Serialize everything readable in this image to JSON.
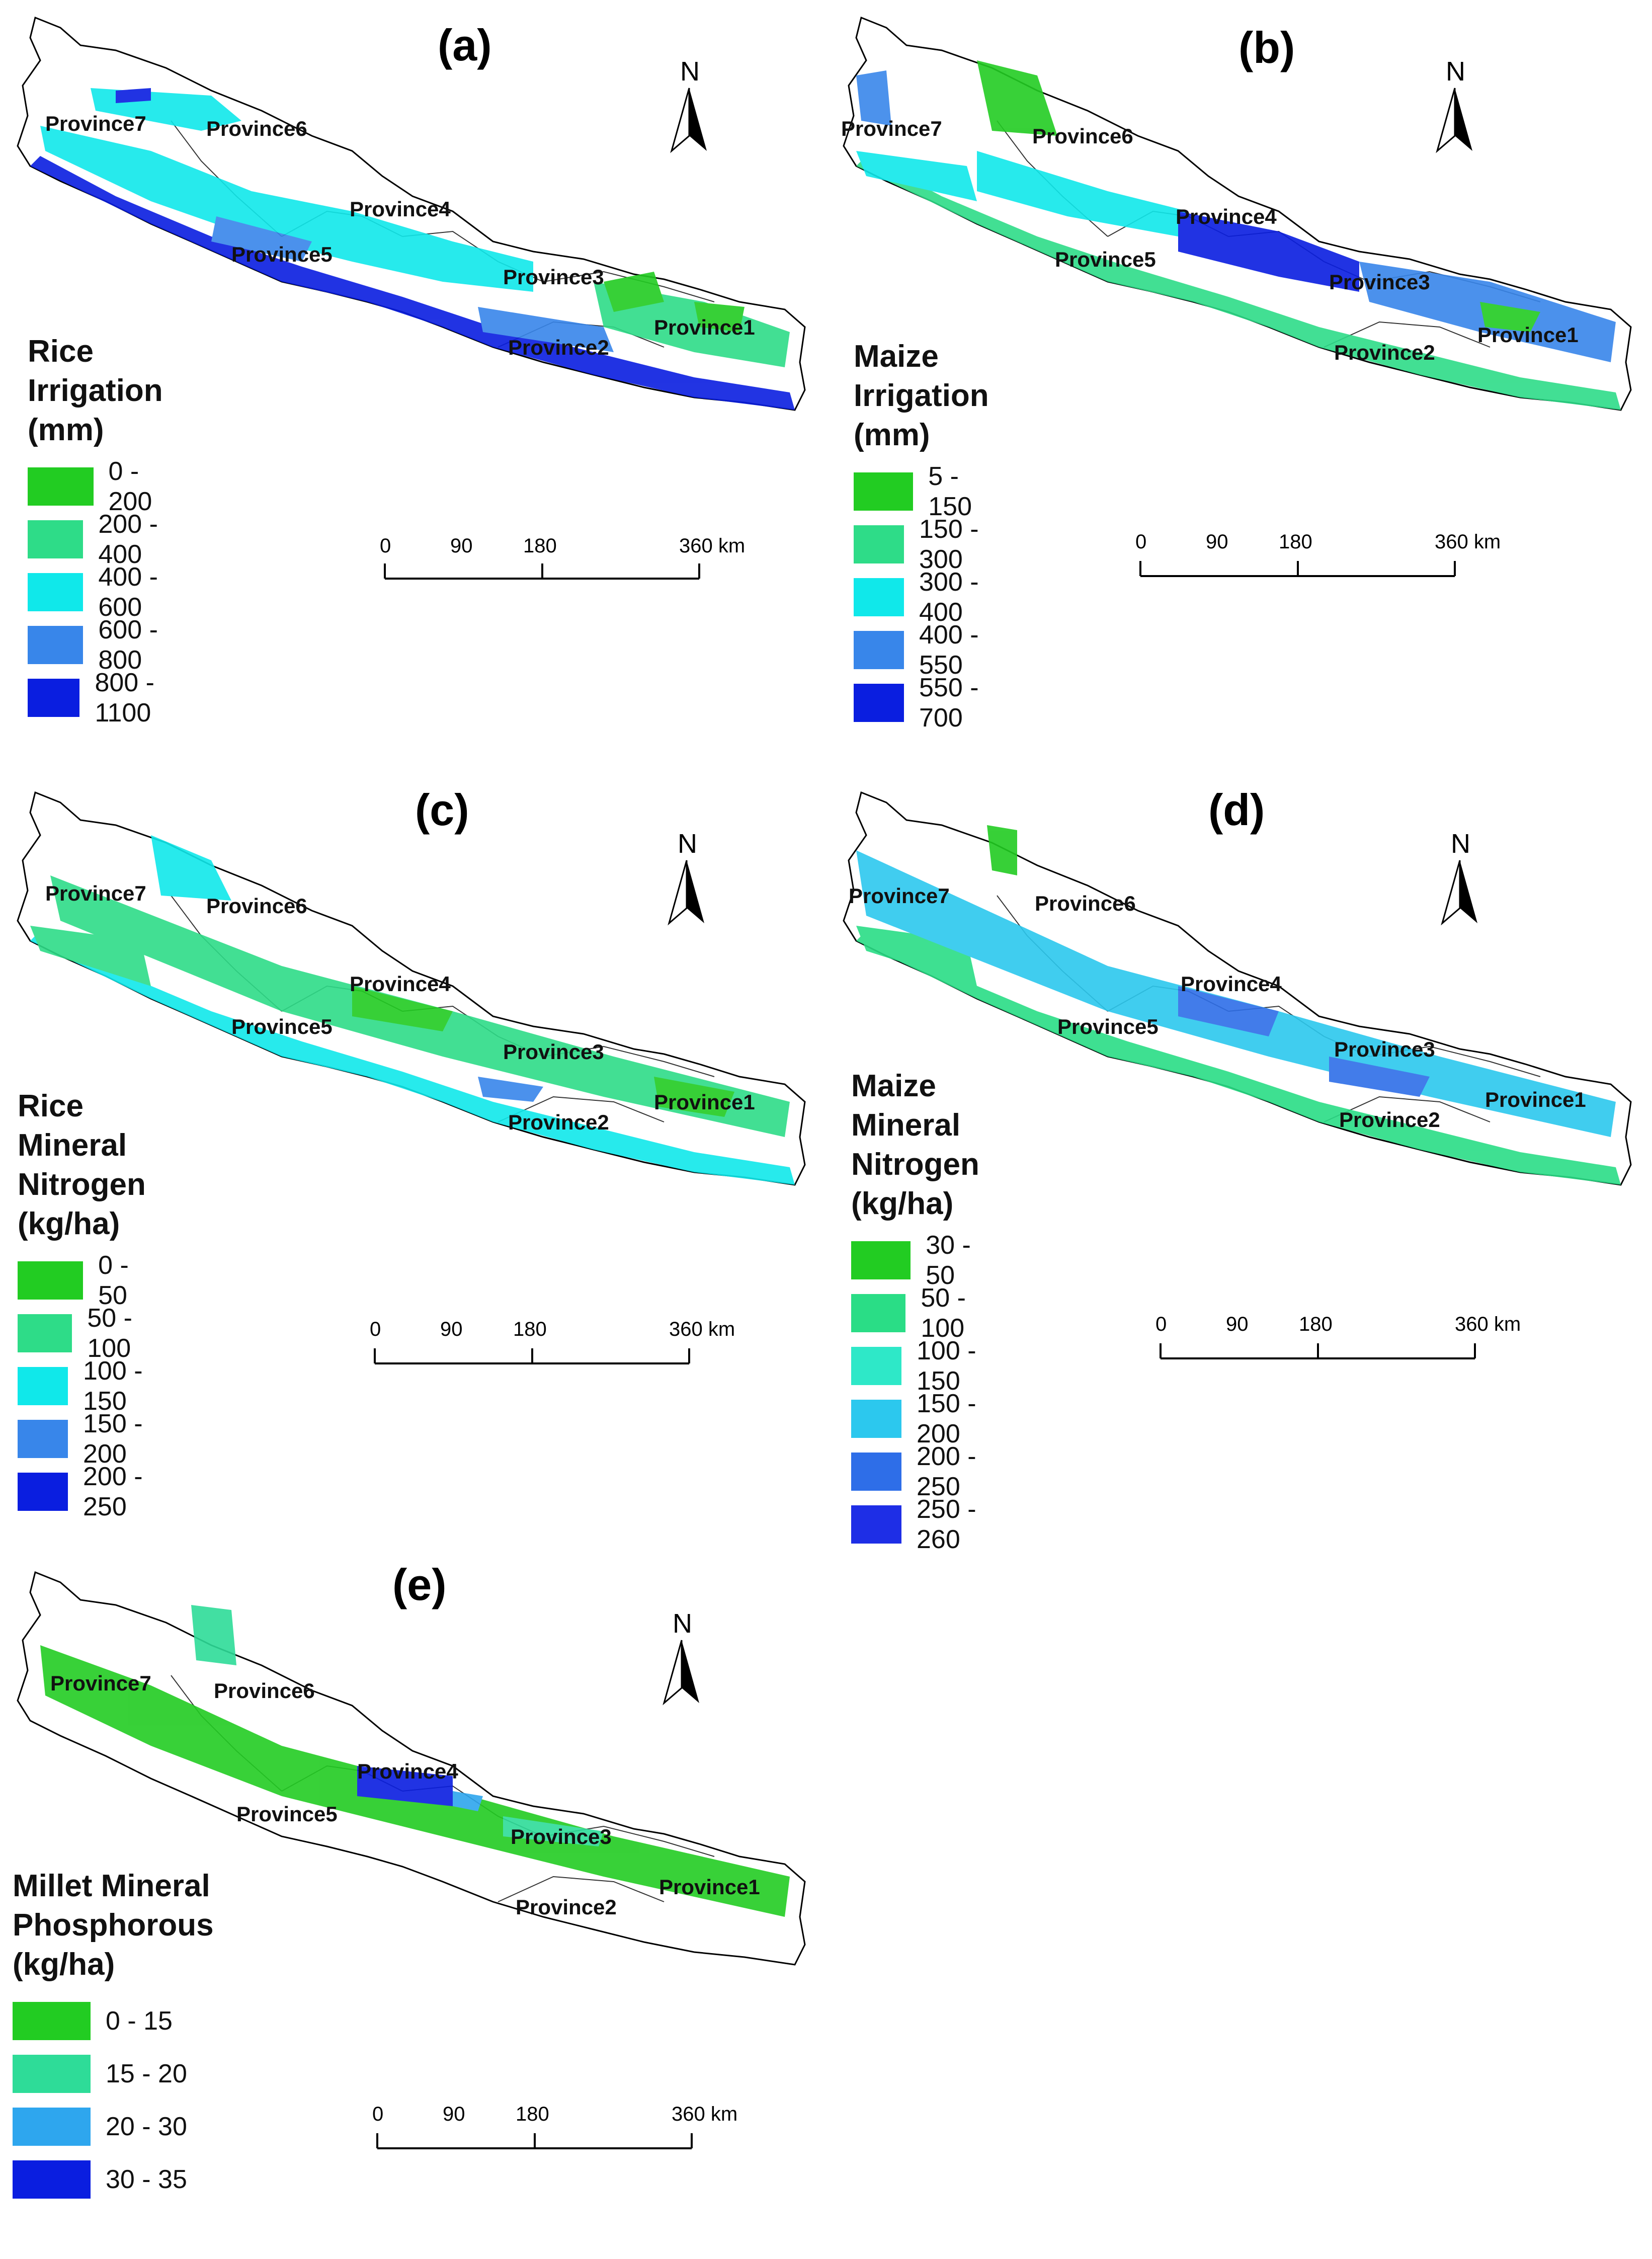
{
  "figure": {
    "north_label": "N",
    "scale_ticks": [
      "0",
      "90",
      "180",
      "360 km"
    ],
    "provinces": [
      "Province1",
      "Province2",
      "Province3",
      "Province4",
      "Province5",
      "Province6",
      "Province7"
    ],
    "colors": {
      "c1": "#22cc22",
      "c2": "#2edc88",
      "c3": "#10e8ea",
      "c4": "#3886ea",
      "c5": "#0a1ee0",
      "m1": "#2add86",
      "m2": "#2ee8c8",
      "m3": "#2cc8ee",
      "m4": "#2e6ee8",
      "m5": "#1e2ee6",
      "outline": "#000000"
    }
  },
  "panels": [
    {
      "label": "(a)",
      "legend_title": "Rice Irrigation (mm)",
      "classes": [
        {
          "label": "0 - 200",
          "color": "#22cc22"
        },
        {
          "label": "200 - 400",
          "color": "#2edc88"
        },
        {
          "label": "400 - 600",
          "color": "#10e8ea"
        },
        {
          "label": "600 - 800",
          "color": "#3886ea"
        },
        {
          "label": "800 - 1100",
          "color": "#0a1ee0"
        }
      ]
    },
    {
      "label": "(b)",
      "legend_title": "Maize Irrigation (mm)",
      "classes": [
        {
          "label": "5 - 150",
          "color": "#22cc22"
        },
        {
          "label": "150 - 300",
          "color": "#2edc88"
        },
        {
          "label": "300 - 400",
          "color": "#10e8ea"
        },
        {
          "label": "400 - 550",
          "color": "#3886ea"
        },
        {
          "label": "550 - 700",
          "color": "#0a1ee0"
        }
      ]
    },
    {
      "label": "(c)",
      "legend_title": "Rice Mineral\nNitrogen (kg/ha)",
      "classes": [
        {
          "label": "0 - 50",
          "color": "#22cc22"
        },
        {
          "label": "50 - 100",
          "color": "#2edc88"
        },
        {
          "label": "100 - 150",
          "color": "#10e8ea"
        },
        {
          "label": "150 - 200",
          "color": "#3886ea"
        },
        {
          "label": "200 - 250",
          "color": "#0a1ee0"
        }
      ]
    },
    {
      "label": "(d)",
      "legend_title": "Maize Mineral\nNitrogen (kg/ha)",
      "classes": [
        {
          "label": "30 - 50",
          "color": "#22cc22"
        },
        {
          "label": "50 - 100",
          "color": "#2add86"
        },
        {
          "label": "100 - 150",
          "color": "#2ee8c8"
        },
        {
          "label": "150 - 200",
          "color": "#2cc8ee"
        },
        {
          "label": "200 - 250",
          "color": "#2e6ee8"
        },
        {
          "label": "250 - 260",
          "color": "#1e2ee6"
        }
      ]
    },
    {
      "label": "(e)",
      "legend_title": "Millet Mineral\nPhosphorous (kg/ha)",
      "classes": [
        {
          "label": "0 - 15",
          "color": "#22cc22"
        },
        {
          "label": "15 - 20",
          "color": "#2edc98"
        },
        {
          "label": "20 - 30",
          "color": "#2ea6ee"
        },
        {
          "label": "30 - 35",
          "color": "#0a1ee0"
        }
      ]
    }
  ]
}
